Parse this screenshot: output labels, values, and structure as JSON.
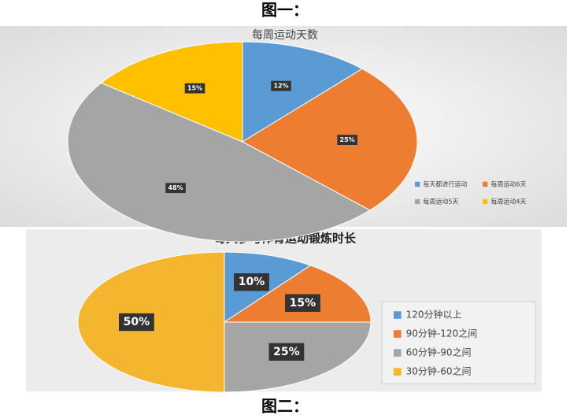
{
  "captions": [
    "图一：",
    "图二："
  ],
  "chart_data": [
    {
      "type": "pie",
      "title": "每周运动天数",
      "categories": [
        "每天都进行运动",
        "每周运动6天",
        "每周运动5天",
        "每周运动4天"
      ],
      "values": [
        12,
        25,
        48,
        15
      ],
      "value_labels": [
        "12%",
        "25%",
        "48%",
        "15%"
      ],
      "colors": [
        "#5b9bd5",
        "#ed7d31",
        "#a5a5a5",
        "#ffc000"
      ],
      "legend": "bottom-right"
    },
    {
      "type": "pie",
      "title": "每天参与体育运动锻炼时长",
      "categories": [
        "120分钟以上",
        "90分钟-120之间",
        "60分钟-90之间",
        "30分钟-60之间"
      ],
      "values": [
        10,
        15,
        25,
        50
      ],
      "value_labels": [
        "10%",
        "15%",
        "25%",
        "50%"
      ],
      "colors": [
        "#5b9bd5",
        "#ed7d31",
        "#a5a5a5",
        "#f4b52f"
      ],
      "legend": "right"
    }
  ]
}
